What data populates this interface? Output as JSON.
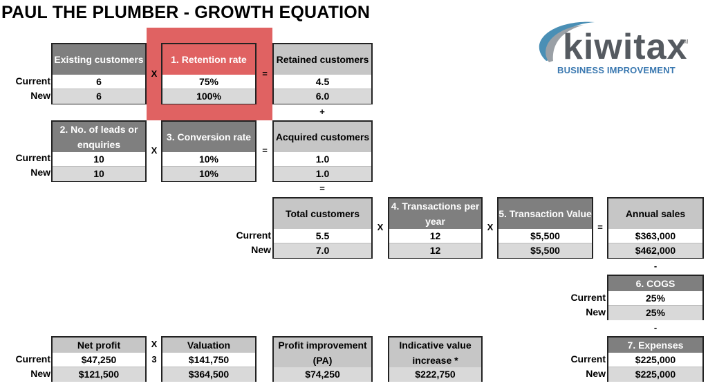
{
  "title": "PAUL THE PLUMBER - GROWTH EQUATION",
  "logo": {
    "name": "kiwitax",
    "tm": "TM",
    "tagline": "BUSINESS IMPROVEMENT"
  },
  "row_labels": {
    "current": "Current",
    "new": "New"
  },
  "operators": {
    "times": "X",
    "equals": "=",
    "plus": "+",
    "minus": "-",
    "three": "3"
  },
  "existing_customers": {
    "header": "Existing customers",
    "current": "6",
    "new": "6"
  },
  "retention_rate": {
    "header": "1. Retention rate",
    "current": "75%",
    "new": "100%"
  },
  "retained_customers": {
    "header": "Retained customers",
    "current": "4.5",
    "new": "6.0"
  },
  "leads": {
    "header": "2. No. of leads or enquiries",
    "current": "10",
    "new": "10"
  },
  "conversion_rate": {
    "header": "3. Conversion rate",
    "current": "10%",
    "new": "10%"
  },
  "acquired_customers": {
    "header": "Acquired customers",
    "current": "1.0",
    "new": "1.0"
  },
  "total_customers": {
    "header": "Total customers",
    "current": "5.5",
    "new": "7.0"
  },
  "transactions_per_year": {
    "header": "4. Transactions per year",
    "current": "12",
    "new": "12"
  },
  "transaction_value": {
    "header": "5. Transaction Value",
    "current": "$5,500",
    "new": "$5,500"
  },
  "annual_sales": {
    "header": "Annual sales",
    "current": "$363,000",
    "new": "$462,000"
  },
  "cogs": {
    "header": "6. COGS",
    "current": "25%",
    "new": "25%"
  },
  "expenses": {
    "header": "7. Expenses",
    "current": "$225,000",
    "new": "$225,000"
  },
  "net_profit": {
    "header": "Net profit",
    "current": "$47,250",
    "new": "$121,500"
  },
  "valuation": {
    "header": "Valuation",
    "current": "$141,750",
    "new": "$364,500"
  },
  "profit_improvement": {
    "header": "Profit improvement (PA)",
    "value": "$74,250"
  },
  "indicative_value": {
    "header": "Indicative value increase *",
    "value": "$222,750"
  }
}
